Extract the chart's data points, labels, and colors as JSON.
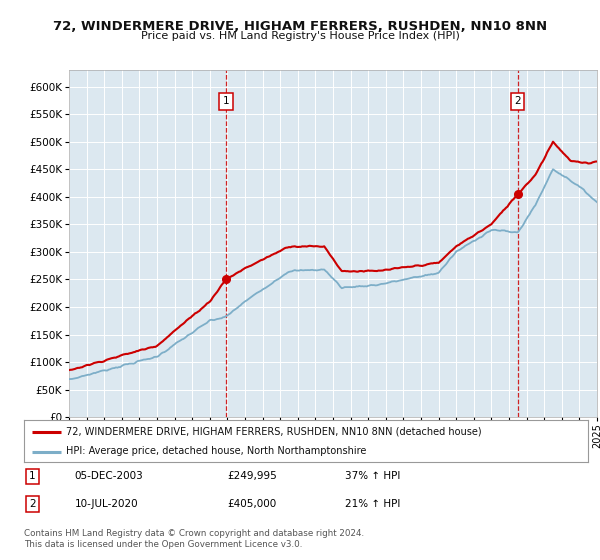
{
  "title": "72, WINDERMERE DRIVE, HIGHAM FERRERS, RUSHDEN, NN10 8NN",
  "subtitle": "Price paid vs. HM Land Registry's House Price Index (HPI)",
  "yticks": [
    0,
    50000,
    100000,
    150000,
    200000,
    250000,
    300000,
    350000,
    400000,
    450000,
    500000,
    550000,
    600000
  ],
  "ylim": [
    0,
    630000
  ],
  "bg_color": "#dce8f0",
  "red_line_color": "#cc0000",
  "blue_line_color": "#7daec8",
  "grid_color": "#ffffff",
  "marker1": {
    "date_idx": 107,
    "value": 249995,
    "label": "1",
    "date_str": "05-DEC-2003",
    "price": "£249,995",
    "hpi": "37% ↑ HPI"
  },
  "marker2": {
    "date_idx": 306,
    "value": 405000,
    "label": "2",
    "date_str": "10-JUL-2020",
    "price": "£405,000",
    "hpi": "21% ↑ HPI"
  },
  "legend_line1": "72, WINDERMERE DRIVE, HIGHAM FERRERS, RUSHDEN, NN10 8NN (detached house)",
  "legend_line2": "HPI: Average price, detached house, North Northamptonshire",
  "footer": "Contains HM Land Registry data © Crown copyright and database right 2024.\nThis data is licensed under the Open Government Licence v3.0.",
  "start_year": 1995,
  "end_year": 2025,
  "months_total": 361
}
